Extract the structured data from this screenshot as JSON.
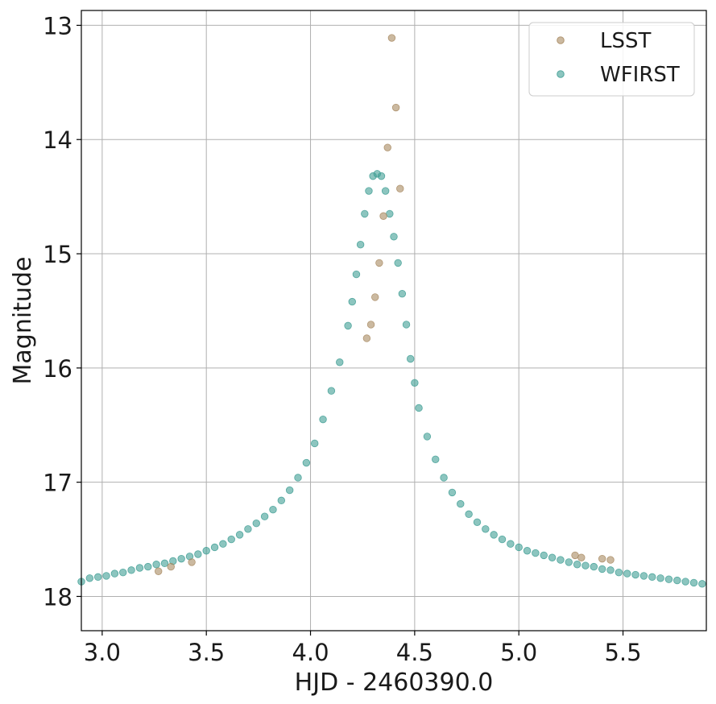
{
  "chart_data": {
    "type": "scatter",
    "title": "",
    "xlabel": "HJD - 2460390.0",
    "ylabel": "Magnitude",
    "xlim": [
      2.9,
      5.9
    ],
    "ylim": [
      18.3,
      12.87
    ],
    "y_inverted": true,
    "grid": true,
    "legend_position": "top-right",
    "xticks": [
      3.0,
      3.5,
      4.0,
      4.5,
      5.0,
      5.5
    ],
    "xtick_labels": [
      "3.0",
      "3.5",
      "4.0",
      "4.5",
      "5.0",
      "5.5"
    ],
    "yticks": [
      13,
      14,
      15,
      16,
      17,
      18
    ],
    "ytick_labels": [
      "13",
      "14",
      "15",
      "16",
      "17",
      "18"
    ],
    "series": [
      {
        "name": "LSST",
        "color": "#a88a61",
        "x": [
          3.27,
          3.33,
          3.43,
          4.27,
          4.29,
          4.31,
          4.33,
          4.35,
          4.37,
          4.39,
          4.41,
          4.43,
          5.27,
          5.3,
          5.4,
          5.44
        ],
        "y": [
          17.78,
          17.74,
          17.7,
          15.74,
          15.62,
          15.38,
          15.08,
          14.67,
          14.07,
          13.11,
          13.72,
          14.43,
          17.64,
          17.66,
          17.67,
          17.68
        ]
      },
      {
        "name": "WFIRST",
        "color": "#409e94",
        "x": [
          2.9,
          2.94,
          2.98,
          3.02,
          3.06,
          3.1,
          3.14,
          3.18,
          3.22,
          3.26,
          3.3,
          3.34,
          3.38,
          3.42,
          3.46,
          3.5,
          3.54,
          3.58,
          3.62,
          3.66,
          3.7,
          3.74,
          3.78,
          3.82,
          3.86,
          3.9,
          3.94,
          3.98,
          4.02,
          4.06,
          4.1,
          4.14,
          4.18,
          4.2,
          4.22,
          4.24,
          4.26,
          4.28,
          4.3,
          4.32,
          4.34,
          4.36,
          4.38,
          4.4,
          4.42,
          4.44,
          4.46,
          4.48,
          4.5,
          4.52,
          4.56,
          4.6,
          4.64,
          4.68,
          4.72,
          4.76,
          4.8,
          4.84,
          4.88,
          4.92,
          4.96,
          5.0,
          5.04,
          5.08,
          5.12,
          5.16,
          5.2,
          5.24,
          5.28,
          5.32,
          5.36,
          5.4,
          5.44,
          5.48,
          5.52,
          5.56,
          5.6,
          5.64,
          5.68,
          5.72,
          5.76,
          5.8,
          5.84,
          5.88
        ],
        "y": [
          17.87,
          17.84,
          17.83,
          17.82,
          17.8,
          17.79,
          17.77,
          17.75,
          17.74,
          17.72,
          17.71,
          17.69,
          17.67,
          17.65,
          17.63,
          17.6,
          17.57,
          17.54,
          17.5,
          17.46,
          17.41,
          17.36,
          17.3,
          17.24,
          17.16,
          17.07,
          16.96,
          16.83,
          16.66,
          16.45,
          16.2,
          15.95,
          15.63,
          15.42,
          15.18,
          14.92,
          14.65,
          14.45,
          14.32,
          14.3,
          14.32,
          14.45,
          14.65,
          14.85,
          15.08,
          15.35,
          15.62,
          15.92,
          16.13,
          16.35,
          16.6,
          16.8,
          16.96,
          17.09,
          17.19,
          17.28,
          17.35,
          17.41,
          17.46,
          17.5,
          17.54,
          17.57,
          17.6,
          17.62,
          17.64,
          17.66,
          17.68,
          17.7,
          17.72,
          17.73,
          17.74,
          17.76,
          17.77,
          17.79,
          17.8,
          17.81,
          17.82,
          17.83,
          17.84,
          17.85,
          17.86,
          17.87,
          17.88,
          17.89
        ]
      }
    ]
  }
}
